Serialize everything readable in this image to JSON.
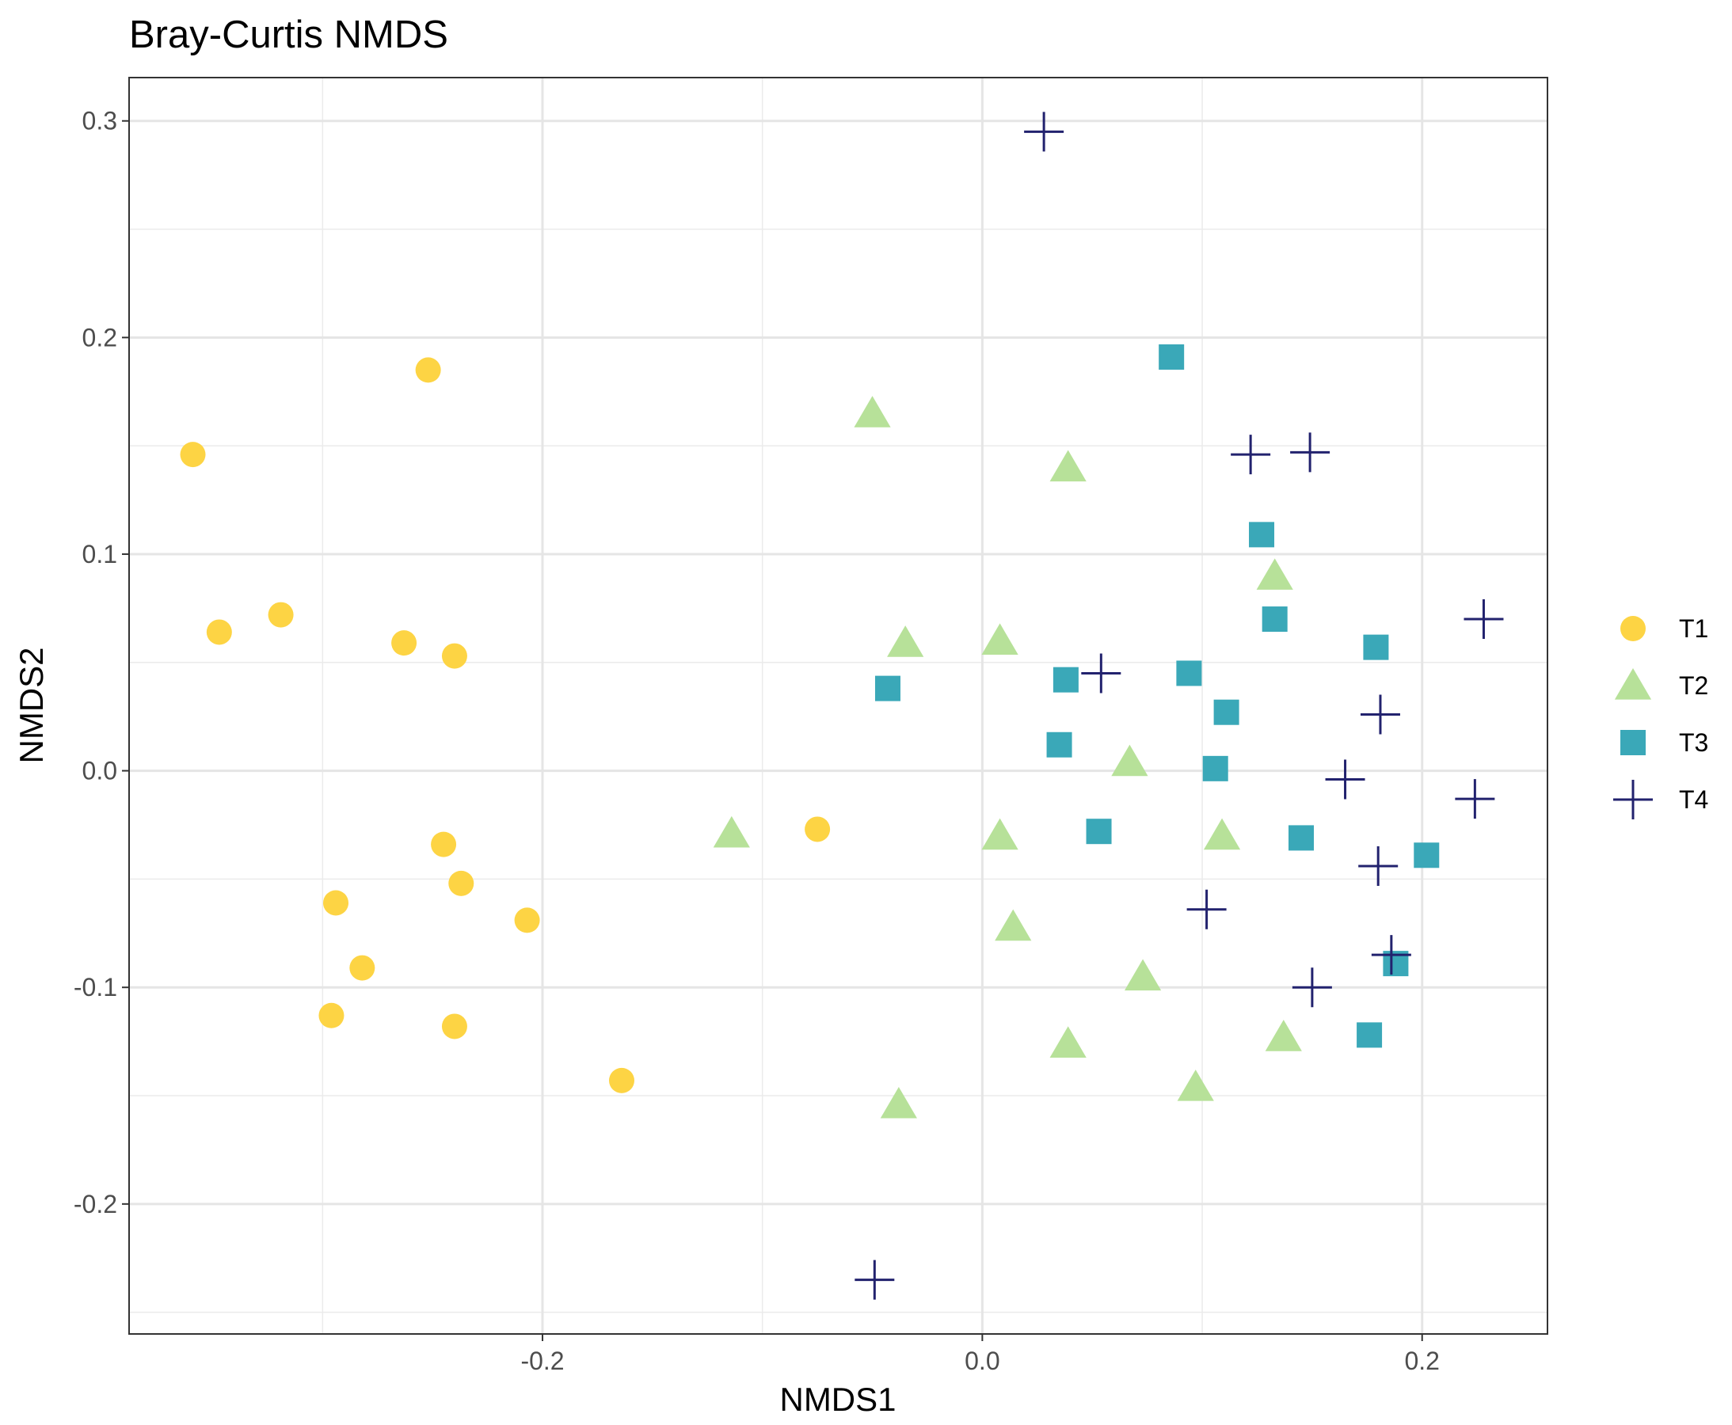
{
  "chart_data": {
    "type": "scatter",
    "title": "Bray-Curtis NMDS",
    "xlabel": "NMDS1",
    "ylabel": "NMDS2",
    "xlim": [
      -0.388,
      0.257
    ],
    "ylim": [
      -0.26,
      0.32
    ],
    "x_ticks": [
      -0.2,
      0.0,
      0.2
    ],
    "x_tick_labels": [
      "-0.2",
      "0.0",
      "0.2"
    ],
    "y_ticks": [
      -0.2,
      -0.1,
      0.0,
      0.1,
      0.2,
      0.3
    ],
    "y_tick_labels": [
      "-0.2",
      "-0.1",
      "0.0",
      "0.1",
      "0.2",
      "0.3"
    ],
    "grid": true,
    "legend_position": "right",
    "series": [
      {
        "name": "T1",
        "shape": "circle",
        "color": "#FDD444",
        "points": [
          {
            "x": -0.359,
            "y": 0.146
          },
          {
            "x": -0.252,
            "y": 0.185
          },
          {
            "x": -0.347,
            "y": 0.064
          },
          {
            "x": -0.319,
            "y": 0.072
          },
          {
            "x": -0.263,
            "y": 0.059
          },
          {
            "x": -0.24,
            "y": 0.053
          },
          {
            "x": -0.245,
            "y": -0.034
          },
          {
            "x": -0.237,
            "y": -0.052
          },
          {
            "x": -0.294,
            "y": -0.061
          },
          {
            "x": -0.207,
            "y": -0.069
          },
          {
            "x": -0.282,
            "y": -0.091
          },
          {
            "x": -0.296,
            "y": -0.113
          },
          {
            "x": -0.24,
            "y": -0.118
          },
          {
            "x": -0.164,
            "y": -0.143
          },
          {
            "x": -0.075,
            "y": -0.027
          }
        ]
      },
      {
        "name": "T2",
        "shape": "triangle",
        "color": "#B7E199",
        "points": [
          {
            "x": -0.05,
            "y": 0.165
          },
          {
            "x": 0.039,
            "y": 0.14
          },
          {
            "x": 0.133,
            "y": 0.09
          },
          {
            "x": -0.035,
            "y": 0.059
          },
          {
            "x": 0.008,
            "y": 0.06
          },
          {
            "x": 0.067,
            "y": 0.004
          },
          {
            "x": -0.114,
            "y": -0.029
          },
          {
            "x": 0.008,
            "y": -0.03
          },
          {
            "x": 0.109,
            "y": -0.03
          },
          {
            "x": 0.014,
            "y": -0.072
          },
          {
            "x": 0.073,
            "y": -0.095
          },
          {
            "x": 0.039,
            "y": -0.126
          },
          {
            "x": 0.137,
            "y": -0.123
          },
          {
            "x": 0.097,
            "y": -0.146
          },
          {
            "x": -0.038,
            "y": -0.154
          }
        ]
      },
      {
        "name": "T3",
        "shape": "square",
        "color": "#3AA8B8",
        "points": [
          {
            "x": 0.086,
            "y": 0.191
          },
          {
            "x": 0.127,
            "y": 0.109
          },
          {
            "x": 0.133,
            "y": 0.07
          },
          {
            "x": 0.179,
            "y": 0.057
          },
          {
            "x": -0.043,
            "y": 0.038
          },
          {
            "x": 0.038,
            "y": 0.042
          },
          {
            "x": 0.094,
            "y": 0.045
          },
          {
            "x": 0.111,
            "y": 0.027
          },
          {
            "x": 0.035,
            "y": 0.012
          },
          {
            "x": 0.106,
            "y": 0.001
          },
          {
            "x": 0.053,
            "y": -0.028
          },
          {
            "x": 0.145,
            "y": -0.031
          },
          {
            "x": 0.202,
            "y": -0.039
          },
          {
            "x": 0.188,
            "y": -0.089
          },
          {
            "x": 0.176,
            "y": -0.122
          }
        ]
      },
      {
        "name": "T4",
        "shape": "plus",
        "color": "#22226E",
        "points": [
          {
            "x": 0.028,
            "y": 0.295
          },
          {
            "x": 0.122,
            "y": 0.146
          },
          {
            "x": 0.149,
            "y": 0.147
          },
          {
            "x": 0.228,
            "y": 0.07
          },
          {
            "x": 0.054,
            "y": 0.045
          },
          {
            "x": 0.181,
            "y": 0.026
          },
          {
            "x": 0.165,
            "y": -0.004
          },
          {
            "x": 0.224,
            "y": -0.013
          },
          {
            "x": 0.18,
            "y": -0.044
          },
          {
            "x": 0.102,
            "y": -0.064
          },
          {
            "x": 0.186,
            "y": -0.085
          },
          {
            "x": 0.15,
            "y": -0.1
          },
          {
            "x": -0.049,
            "y": -0.235
          }
        ]
      }
    ]
  }
}
